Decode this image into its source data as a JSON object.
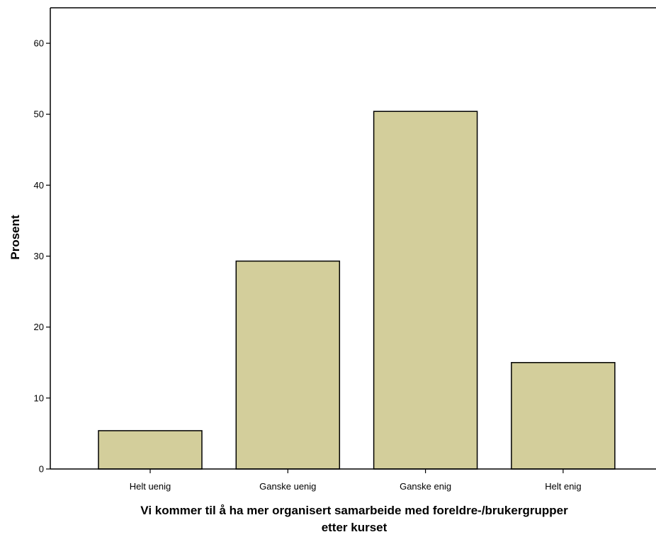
{
  "chart_data": {
    "type": "bar",
    "categories": [
      "Helt uenig",
      "Ganske uenig",
      "Ganske enig",
      "Helt enig"
    ],
    "values": [
      5.4,
      29.3,
      50.4,
      15.0
    ],
    "ylabel": "Prosent",
    "xlabel_lines": [
      "Vi kommer til å ha mer organisert samarbeide med foreldre-/brukergrupper",
      "etter kurset"
    ],
    "ylim": [
      0,
      65
    ],
    "yticks": [
      0,
      10,
      20,
      30,
      40,
      50,
      60
    ],
    "grid": false,
    "legend": "none",
    "colors": {
      "bar_fill": "#d3ce9b",
      "bar_stroke": "#000000",
      "axis": "#000000"
    }
  }
}
